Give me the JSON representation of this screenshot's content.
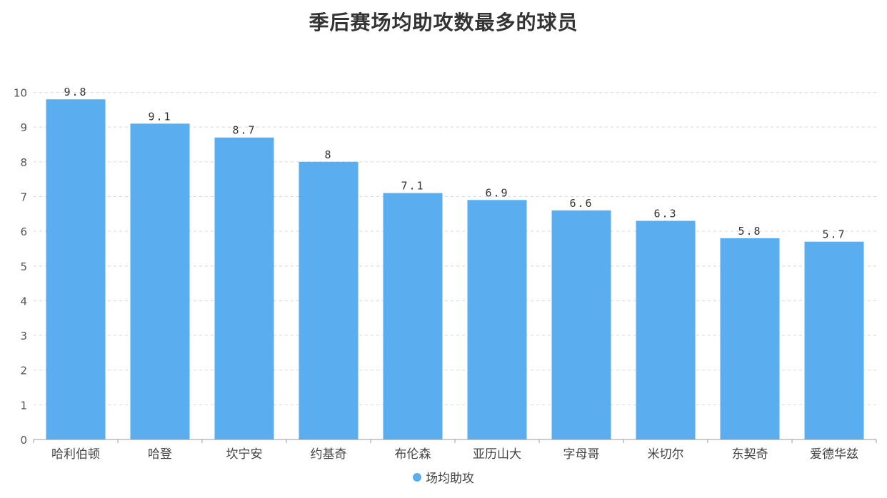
{
  "title": "季后赛场均助攻数最多的球员",
  "chart_data": {
    "type": "bar",
    "title": "季后赛场均助攻数最多的球员",
    "categories": [
      "哈利伯顿",
      "哈登",
      "坎宁安",
      "约基奇",
      "布伦森",
      "亚历山大",
      "字母哥",
      "米切尔",
      "东契奇",
      "爱德华兹"
    ],
    "series": [
      {
        "name": "场均助攻",
        "values": [
          9.8,
          9.1,
          8.7,
          8,
          7.1,
          6.9,
          6.6,
          6.3,
          5.8,
          5.7
        ]
      }
    ],
    "data_labels": [
      "9.8",
      "9.1",
      "8.7",
      "8",
      "7.1",
      "6.9",
      "6.6",
      "6.3",
      "5.8",
      "5.7"
    ],
    "y_ticks": [
      "0",
      "1",
      "2",
      "3",
      "4",
      "5",
      "6",
      "7",
      "8",
      "9",
      "10"
    ],
    "ylim": [
      0,
      10
    ],
    "xlabel": "",
    "ylabel": "",
    "grid": true,
    "legend_position": "bottom",
    "colors": {
      "bar": "#5aaef0",
      "grid": "#d9d9d9",
      "axis": "#999999",
      "text": "#333333"
    }
  }
}
